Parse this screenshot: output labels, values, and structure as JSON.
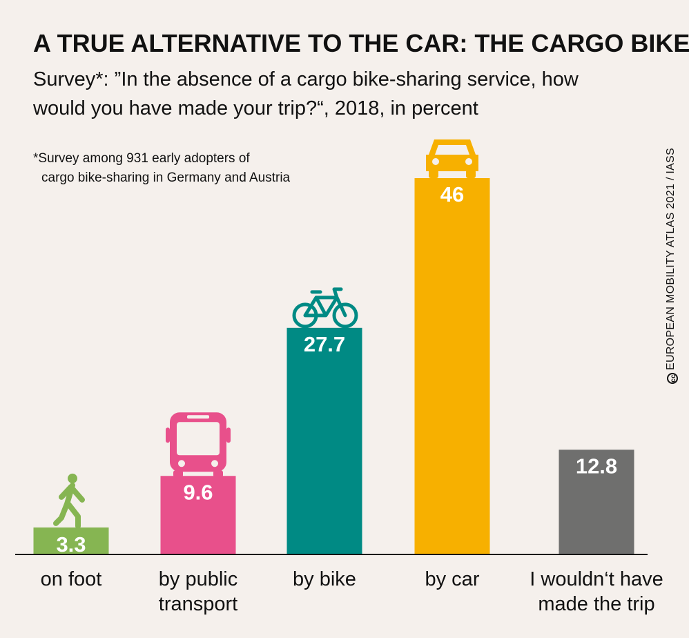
{
  "title": "A TRUE ALTERNATIVE TO THE CAR: THE CARGO BIKE",
  "subtitle": "Survey*: ”In the absence of a cargo bike-sharing service, how would you have made your trip?“, 2018, in percent",
  "footnote": {
    "line1": "*Survey among 931 early adopters of",
    "line2": "cargo bike-sharing in Germany and Austria"
  },
  "credit": "EUROPEAN MOBILITY ATLAS 2021 / IASS",
  "chart_data": {
    "type": "bar",
    "categories": [
      "on foot",
      "by public transport",
      "by bike",
      "by car",
      "I wouldn‘t have made the trip"
    ],
    "category_lines": [
      [
        "on foot"
      ],
      [
        "by public",
        "transport"
      ],
      [
        "by bike"
      ],
      [
        "by car"
      ],
      [
        "I wouldn‘t have",
        "made the trip"
      ]
    ],
    "values": [
      3.3,
      9.6,
      27.7,
      46,
      12.8
    ],
    "value_labels": [
      "3.3",
      "9.6",
      "27.7",
      "46",
      "12.8"
    ],
    "colors": [
      "#86b552",
      "#e8508b",
      "#008a84",
      "#f7b000",
      "#6f6f6e"
    ],
    "icons": [
      "pedestrian-icon",
      "bus-icon",
      "bicycle-icon",
      "car-icon",
      ""
    ],
    "ylim": [
      0,
      46
    ],
    "grid": false,
    "legend": "none"
  }
}
